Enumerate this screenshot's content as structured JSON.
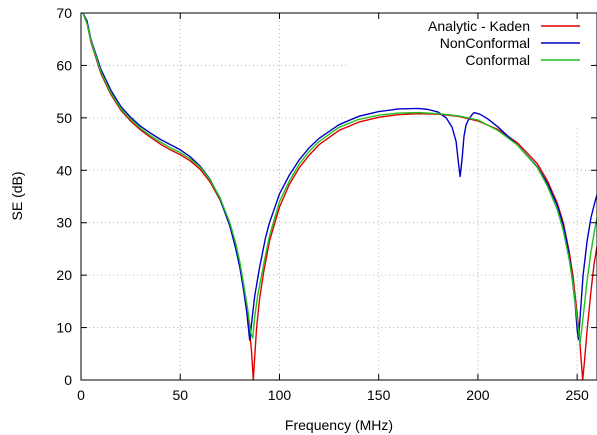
{
  "chart_data": {
    "type": "line",
    "xlabel": "Frequency (MHz)",
    "ylabel": "SE (dB)",
    "xlim": [
      0,
      260
    ],
    "ylim": [
      0,
      70
    ],
    "xticks": [
      0,
      50,
      100,
      150,
      200,
      250
    ],
    "yticks": [
      0,
      10,
      20,
      30,
      40,
      50,
      60,
      70
    ],
    "grid": true,
    "legend_position": "top-right",
    "series": [
      {
        "name": "Analytic - Kaden",
        "color": "#e00000",
        "points": [
          [
            1,
            70
          ],
          [
            3,
            68
          ],
          [
            5,
            64.5
          ],
          [
            10,
            58.5
          ],
          [
            15,
            54.5
          ],
          [
            20,
            51.5
          ],
          [
            25,
            49.4
          ],
          [
            30,
            47.7
          ],
          [
            35,
            46.3
          ],
          [
            40,
            45
          ],
          [
            45,
            43.9
          ],
          [
            50,
            43
          ],
          [
            55,
            41.8
          ],
          [
            60,
            40.2
          ],
          [
            65,
            37.8
          ],
          [
            70,
            34.4
          ],
          [
            75,
            29.8
          ],
          [
            78,
            25.8
          ],
          [
            80,
            22.3
          ],
          [
            82,
            18
          ],
          [
            84,
            12.8
          ],
          [
            85,
            9.5
          ],
          [
            86,
            5
          ],
          [
            86.8,
            0
          ],
          [
            87.6,
            5
          ],
          [
            88.5,
            10
          ],
          [
            90,
            15.5
          ],
          [
            92,
            20.5
          ],
          [
            95,
            26.5
          ],
          [
            100,
            33
          ],
          [
            105,
            37.3
          ],
          [
            110,
            40.5
          ],
          [
            115,
            42.9
          ],
          [
            120,
            44.9
          ],
          [
            130,
            47.6
          ],
          [
            140,
            49.2
          ],
          [
            150,
            50.1
          ],
          [
            160,
            50.6
          ],
          [
            170,
            50.8
          ],
          [
            180,
            50.7
          ],
          [
            190,
            50.3
          ],
          [
            200,
            49.4
          ],
          [
            210,
            47.8
          ],
          [
            220,
            45.2
          ],
          [
            230,
            41.2
          ],
          [
            235,
            38
          ],
          [
            240,
            33.7
          ],
          [
            243,
            30
          ],
          [
            246,
            24.5
          ],
          [
            248,
            19.5
          ],
          [
            250,
            12.5
          ],
          [
            251,
            9
          ],
          [
            252,
            4
          ],
          [
            252.8,
            0
          ],
          [
            253.8,
            4
          ],
          [
            255,
            9.5
          ],
          [
            257,
            17
          ],
          [
            258.5,
            22
          ],
          [
            260,
            25.5
          ]
        ]
      },
      {
        "name": "NonConformal",
        "color": "#0000c8",
        "points": [
          [
            1,
            70
          ],
          [
            3,
            68.5
          ],
          [
            5,
            65
          ],
          [
            10,
            59.3
          ],
          [
            15,
            55.3
          ],
          [
            20,
            52.2
          ],
          [
            25,
            50.1
          ],
          [
            30,
            48.4
          ],
          [
            35,
            47.1
          ],
          [
            40,
            45.9
          ],
          [
            45,
            44.9
          ],
          [
            50,
            43.9
          ],
          [
            55,
            42.6
          ],
          [
            60,
            40.8
          ],
          [
            65,
            38.3
          ],
          [
            70,
            34.6
          ],
          [
            75,
            29.4
          ],
          [
            78,
            25
          ],
          [
            80,
            21.5
          ],
          [
            82,
            17
          ],
          [
            83.5,
            13
          ],
          [
            85,
            7.6
          ],
          [
            86,
            11
          ],
          [
            87.5,
            16
          ],
          [
            90,
            21.5
          ],
          [
            93,
            27.2
          ],
          [
            95,
            30
          ],
          [
            100,
            35.5
          ],
          [
            105,
            39.1
          ],
          [
            110,
            42
          ],
          [
            115,
            44.3
          ],
          [
            120,
            46.1
          ],
          [
            130,
            48.7
          ],
          [
            140,
            50.3
          ],
          [
            150,
            51.2
          ],
          [
            160,
            51.7
          ],
          [
            170,
            51.8
          ],
          [
            175,
            51.6
          ],
          [
            180,
            51.1
          ],
          [
            184,
            50
          ],
          [
            187,
            48.2
          ],
          [
            189,
            45.5
          ],
          [
            190,
            42
          ],
          [
            191,
            38.8
          ],
          [
            192,
            42
          ],
          [
            193,
            46.5
          ],
          [
            194,
            48.6
          ],
          [
            195,
            49.5
          ],
          [
            197,
            50.6
          ],
          [
            198,
            51
          ],
          [
            201,
            50.7
          ],
          [
            205,
            49.8
          ],
          [
            210,
            48.3
          ],
          [
            220,
            44.8
          ],
          [
            230,
            40.6
          ],
          [
            235,
            37.5
          ],
          [
            240,
            33.3
          ],
          [
            243,
            29.5
          ],
          [
            245,
            26
          ],
          [
            247,
            21
          ],
          [
            249,
            14.5
          ],
          [
            250,
            9.5
          ],
          [
            250.7,
            7.7
          ],
          [
            251.5,
            12
          ],
          [
            253,
            20
          ],
          [
            255,
            26.5
          ],
          [
            257,
            31
          ],
          [
            259,
            34
          ],
          [
            260,
            35.3
          ]
        ]
      },
      {
        "name": "Conformal",
        "color": "#20c020",
        "points": [
          [
            1,
            70
          ],
          [
            3,
            68
          ],
          [
            5,
            64.8
          ],
          [
            10,
            58.8
          ],
          [
            15,
            54.8
          ],
          [
            20,
            51.8
          ],
          [
            25,
            49.7
          ],
          [
            30,
            48
          ],
          [
            35,
            46.6
          ],
          [
            40,
            45.4
          ],
          [
            45,
            44.3
          ],
          [
            50,
            43.4
          ],
          [
            55,
            42.2
          ],
          [
            60,
            40.6
          ],
          [
            65,
            38.2
          ],
          [
            70,
            34.8
          ],
          [
            75,
            30
          ],
          [
            78,
            26
          ],
          [
            80,
            22.5
          ],
          [
            82,
            18.2
          ],
          [
            84,
            13.5
          ],
          [
            85.5,
            9
          ],
          [
            86.5,
            8
          ],
          [
            87.5,
            12
          ],
          [
            89,
            16
          ],
          [
            92,
            22
          ],
          [
            95,
            27.5
          ],
          [
            100,
            34
          ],
          [
            105,
            38
          ],
          [
            110,
            41.2
          ],
          [
            115,
            43.6
          ],
          [
            120,
            45.5
          ],
          [
            130,
            48.2
          ],
          [
            140,
            49.7
          ],
          [
            150,
            50.5
          ],
          [
            160,
            50.9
          ],
          [
            170,
            51
          ],
          [
            180,
            50.8
          ],
          [
            190,
            50.4
          ],
          [
            200,
            49.6
          ],
          [
            210,
            47.6
          ],
          [
            220,
            44.8
          ],
          [
            230,
            40.5
          ],
          [
            235,
            37
          ],
          [
            240,
            32.5
          ],
          [
            243,
            28.5
          ],
          [
            246,
            23
          ],
          [
            248,
            18
          ],
          [
            250,
            11.5
          ],
          [
            251.5,
            7
          ],
          [
            253,
            12
          ],
          [
            255,
            19
          ],
          [
            257,
            24.5
          ],
          [
            259,
            29
          ],
          [
            260,
            31
          ]
        ]
      }
    ]
  }
}
